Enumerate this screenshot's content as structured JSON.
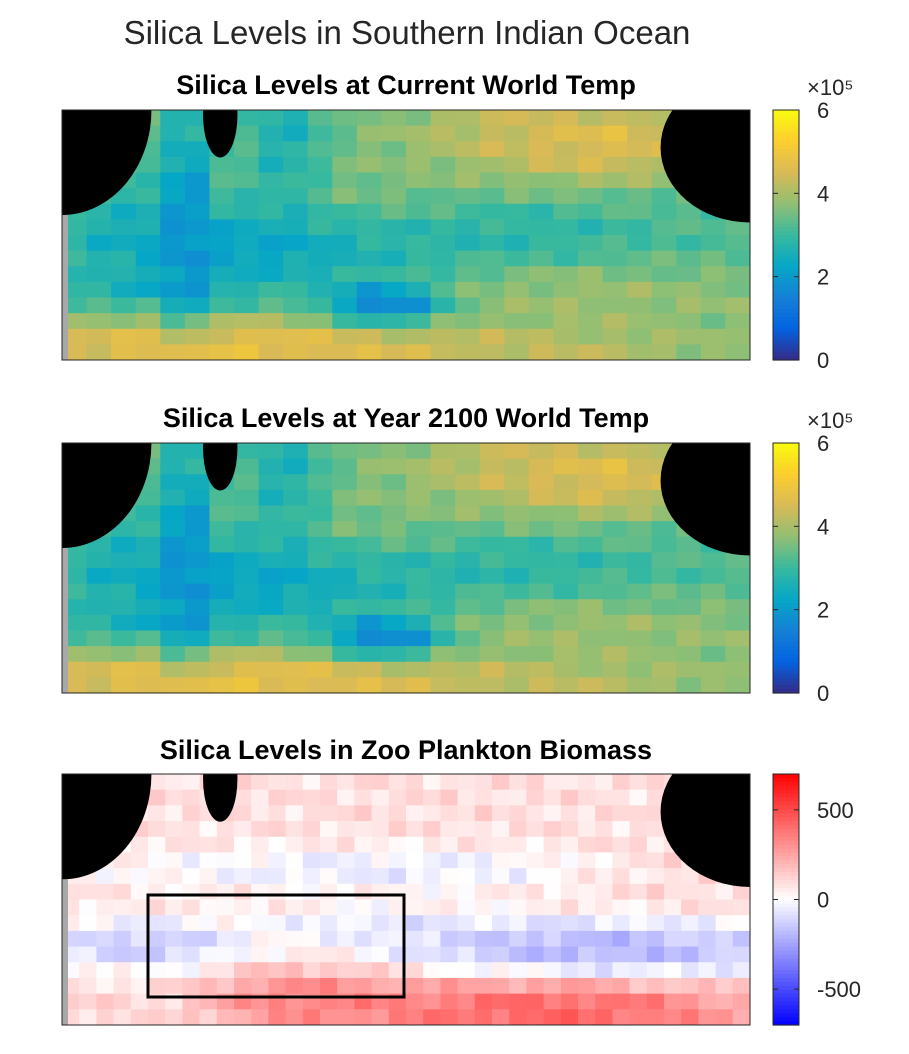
{
  "figure": {
    "title": "Silica Levels in Southern Indian Ocean"
  },
  "chart_data": [
    {
      "type": "heatmap",
      "title": "Silica Levels at Current World Temp",
      "colormap": "parula",
      "colorbar": {
        "range": [
          0,
          6
        ],
        "ticks": [
          0,
          2,
          4,
          6
        ],
        "tick_labels": [
          "0",
          "2",
          "4",
          "6"
        ],
        "exponent_label": "×10⁵"
      },
      "grid_size": [
        28,
        16
      ],
      "land_color": "#000000",
      "blobs": [
        {
          "cx": 0.03,
          "cy": 0.06,
          "rx": 0.22,
          "ry": 0.16,
          "v": 0.55,
          "w": 1.0
        },
        {
          "cx": 0.18,
          "cy": 0.4,
          "rx": 0.03,
          "ry": 0.45,
          "v": 0.15,
          "w": 0.9
        },
        {
          "cx": 0.33,
          "cy": 0.1,
          "rx": 0.05,
          "ry": 0.3,
          "v": 0.25,
          "w": 0.6
        },
        {
          "cx": 0.28,
          "cy": 0.55,
          "rx": 0.2,
          "ry": 0.12,
          "v": 0.22,
          "w": 0.8
        },
        {
          "cx": 0.1,
          "cy": 0.45,
          "rx": 0.08,
          "ry": 0.15,
          "v": 0.35,
          "w": 0.6
        },
        {
          "cx": 0.45,
          "cy": 0.3,
          "rx": 0.12,
          "ry": 0.25,
          "v": 0.62,
          "w": 0.7
        },
        {
          "cx": 0.6,
          "cy": 0.5,
          "rx": 0.3,
          "ry": 0.1,
          "v": 0.42,
          "w": 0.9
        },
        {
          "cx": 0.7,
          "cy": 0.1,
          "rx": 0.18,
          "ry": 0.15,
          "v": 0.85,
          "w": 0.9
        },
        {
          "cx": 0.82,
          "cy": 0.15,
          "rx": 0.1,
          "ry": 0.12,
          "v": 0.9,
          "w": 0.7
        },
        {
          "cx": 0.88,
          "cy": 0.5,
          "rx": 0.08,
          "ry": 0.25,
          "v": 0.55,
          "w": 0.8
        },
        {
          "cx": 0.82,
          "cy": 0.75,
          "rx": 0.22,
          "ry": 0.12,
          "v": 0.72,
          "w": 0.8
        },
        {
          "cx": 0.47,
          "cy": 0.78,
          "rx": 0.07,
          "ry": 0.07,
          "v": 0.05,
          "w": 1.0
        },
        {
          "cx": 0.22,
          "cy": 0.96,
          "rx": 0.28,
          "ry": 0.1,
          "v": 0.95,
          "w": 1.0
        },
        {
          "cx": 0.65,
          "cy": 0.97,
          "rx": 0.3,
          "ry": 0.1,
          "v": 0.8,
          "w": 0.8
        },
        {
          "cx": 0.15,
          "cy": 0.72,
          "rx": 0.12,
          "ry": 0.06,
          "v": 0.25,
          "w": 0.5
        }
      ]
    },
    {
      "type": "heatmap",
      "title": "Silica Levels at Year 2100 World Temp",
      "colormap": "parula",
      "colorbar": {
        "range": [
          0,
          6
        ],
        "ticks": [
          0,
          2,
          4,
          6
        ],
        "tick_labels": [
          "0",
          "2",
          "4",
          "6"
        ],
        "exponent_label": "×10⁵"
      },
      "grid_size": [
        28,
        16
      ],
      "land_color": "#000000",
      "blobs": [
        {
          "cx": 0.03,
          "cy": 0.06,
          "rx": 0.22,
          "ry": 0.16,
          "v": 0.55,
          "w": 1.0
        },
        {
          "cx": 0.18,
          "cy": 0.4,
          "rx": 0.03,
          "ry": 0.45,
          "v": 0.15,
          "w": 0.9
        },
        {
          "cx": 0.33,
          "cy": 0.1,
          "rx": 0.05,
          "ry": 0.3,
          "v": 0.25,
          "w": 0.6
        },
        {
          "cx": 0.28,
          "cy": 0.55,
          "rx": 0.2,
          "ry": 0.12,
          "v": 0.22,
          "w": 0.8
        },
        {
          "cx": 0.1,
          "cy": 0.45,
          "rx": 0.08,
          "ry": 0.15,
          "v": 0.35,
          "w": 0.6
        },
        {
          "cx": 0.45,
          "cy": 0.3,
          "rx": 0.12,
          "ry": 0.25,
          "v": 0.62,
          "w": 0.7
        },
        {
          "cx": 0.6,
          "cy": 0.5,
          "rx": 0.3,
          "ry": 0.1,
          "v": 0.42,
          "w": 0.9
        },
        {
          "cx": 0.7,
          "cy": 0.1,
          "rx": 0.18,
          "ry": 0.15,
          "v": 0.85,
          "w": 0.9
        },
        {
          "cx": 0.82,
          "cy": 0.15,
          "rx": 0.1,
          "ry": 0.12,
          "v": 0.9,
          "w": 0.7
        },
        {
          "cx": 0.88,
          "cy": 0.5,
          "rx": 0.08,
          "ry": 0.25,
          "v": 0.55,
          "w": 0.8
        },
        {
          "cx": 0.82,
          "cy": 0.75,
          "rx": 0.22,
          "ry": 0.12,
          "v": 0.72,
          "w": 0.8
        },
        {
          "cx": 0.47,
          "cy": 0.78,
          "rx": 0.07,
          "ry": 0.07,
          "v": 0.05,
          "w": 1.0
        },
        {
          "cx": 0.22,
          "cy": 0.96,
          "rx": 0.28,
          "ry": 0.1,
          "v": 0.95,
          "w": 1.0
        },
        {
          "cx": 0.65,
          "cy": 0.97,
          "rx": 0.3,
          "ry": 0.1,
          "v": 0.8,
          "w": 0.8
        },
        {
          "cx": 0.15,
          "cy": 0.72,
          "rx": 0.12,
          "ry": 0.06,
          "v": 0.25,
          "w": 0.5
        }
      ]
    },
    {
      "type": "heatmap",
      "title": "Silica Levels in Zoo Plankton Biomass",
      "colormap": "blue-white-red",
      "colorbar": {
        "range": [
          -700,
          700
        ],
        "ticks": [
          -500,
          0,
          500
        ],
        "tick_labels": [
          "-500",
          "0",
          "500"
        ]
      },
      "grid_size": [
        40,
        16
      ],
      "land_color": "#000000",
      "highlight_box": true,
      "blobs": [
        {
          "cx": 0.5,
          "cy": 0.1,
          "rx": 0.4,
          "ry": 0.15,
          "v": 0.58,
          "w": 0.6
        },
        {
          "cx": 0.45,
          "cy": 0.38,
          "rx": 0.3,
          "ry": 0.07,
          "v": 0.38,
          "w": 0.7
        },
        {
          "cx": 0.12,
          "cy": 0.68,
          "rx": 0.12,
          "ry": 0.08,
          "v": 0.28,
          "w": 0.8
        },
        {
          "cx": 0.45,
          "cy": 0.6,
          "rx": 0.15,
          "ry": 0.06,
          "v": 0.38,
          "w": 0.6
        },
        {
          "cx": 0.78,
          "cy": 0.7,
          "rx": 0.25,
          "ry": 0.1,
          "v": 0.22,
          "w": 0.9
        },
        {
          "cx": 0.35,
          "cy": 0.9,
          "rx": 0.12,
          "ry": 0.1,
          "v": 0.85,
          "w": 0.9
        },
        {
          "cx": 0.7,
          "cy": 0.95,
          "rx": 0.25,
          "ry": 0.12,
          "v": 0.95,
          "w": 1.0
        },
        {
          "cx": 0.9,
          "cy": 0.4,
          "rx": 0.15,
          "ry": 0.15,
          "v": 0.6,
          "w": 0.5
        },
        {
          "cx": 0.05,
          "cy": 0.95,
          "rx": 0.05,
          "ry": 0.08,
          "v": 0.62,
          "w": 0.6
        }
      ]
    }
  ]
}
